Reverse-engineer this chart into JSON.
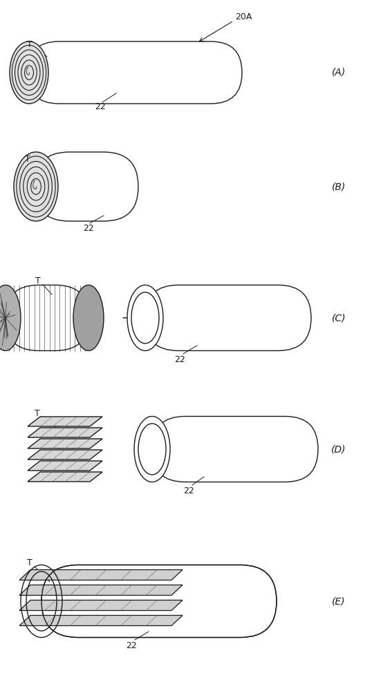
{
  "background_color": "#ffffff",
  "line_color": "#1a1a1a",
  "label_20A": "20A",
  "label_22": "22",
  "label_T": "T",
  "fig_width": 5.38,
  "fig_height": 10.0,
  "dpi": 100
}
